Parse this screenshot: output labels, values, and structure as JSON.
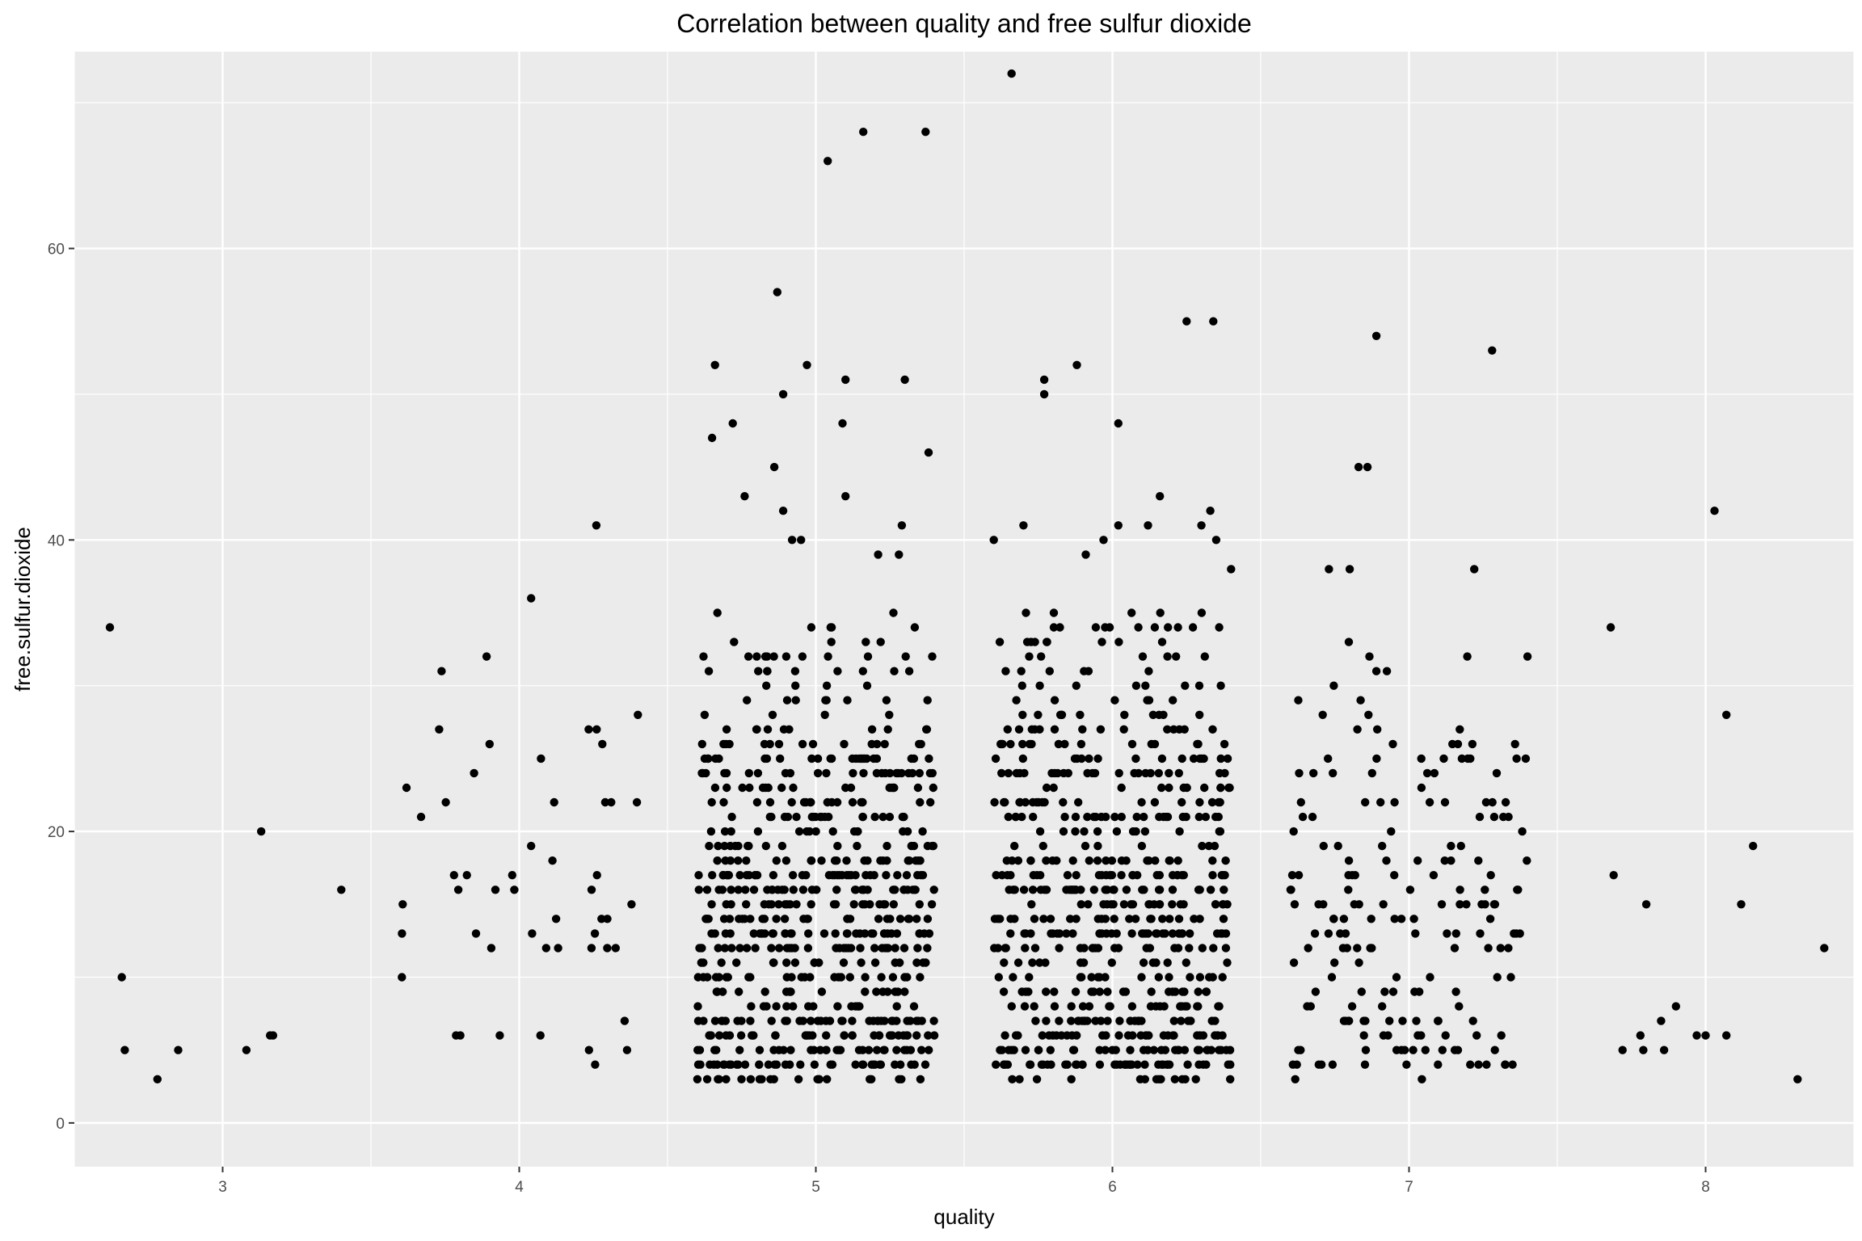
{
  "chart_data": {
    "type": "scatter",
    "title": "Correlation between quality and free sulfur dioxide",
    "xlabel": "quality",
    "ylabel": "free.sulfur.dioxide",
    "xlim": [
      2.5,
      8.5
    ],
    "ylim": [
      -3,
      73.5
    ],
    "x_ticks": [
      3,
      4,
      5,
      6,
      7,
      8
    ],
    "y_ticks": [
      0,
      20,
      40,
      60
    ],
    "x_tick_labels": [
      "3",
      "4",
      "5",
      "6",
      "7",
      "8"
    ],
    "y_tick_labels": [
      "0",
      "20",
      "40",
      "60"
    ],
    "grid": true,
    "jitter": true,
    "colors": {
      "panel": "#EBEBEB",
      "grid": "#FFFFFF",
      "point": "#000000"
    },
    "groups": [
      {
        "quality": 3,
        "count": 10,
        "outliers": [
          [
            2.62,
            34
          ],
          [
            2.66,
            10
          ],
          [
            2.67,
            5
          ],
          [
            2.78,
            3
          ],
          [
            2.85,
            5
          ],
          [
            3.08,
            5
          ],
          [
            3.13,
            20
          ],
          [
            3.16,
            6
          ],
          [
            3.17,
            6
          ],
          [
            3.4,
            16
          ]
        ]
      },
      {
        "quality": 4,
        "count": 53,
        "outliers": [
          [
            4.26,
            41
          ],
          [
            4.04,
            36
          ],
          [
            3.89,
            32
          ],
          [
            4.4,
            28
          ],
          [
            3.73,
            27
          ],
          [
            4.28,
            26
          ],
          [
            3.9,
            26
          ],
          [
            4.31,
            22
          ],
          [
            3.62,
            23
          ],
          [
            4.04,
            19
          ]
        ]
      },
      {
        "quality": 5,
        "count": 681,
        "outliers": [
          [
            5.66,
            72
          ],
          [
            5.16,
            68
          ],
          [
            5.37,
            68
          ],
          [
            5.04,
            66
          ],
          [
            4.87,
            57
          ],
          [
            4.97,
            52
          ],
          [
            4.66,
            52
          ],
          [
            5.1,
            51
          ],
          [
            5.3,
            51
          ],
          [
            4.89,
            50
          ],
          [
            5.09,
            48
          ],
          [
            4.72,
            48
          ],
          [
            4.65,
            47
          ],
          [
            5.38,
            46
          ],
          [
            4.86,
            45
          ],
          [
            5.1,
            43
          ],
          [
            4.76,
            43
          ],
          [
            4.89,
            42
          ],
          [
            4.92,
            40
          ],
          [
            5.29,
            41
          ],
          [
            4.95,
            40
          ],
          [
            5.21,
            39
          ],
          [
            5.28,
            39
          ]
        ]
      },
      {
        "quality": 6,
        "count": 638,
        "outliers": [
          [
            6.25,
            55
          ],
          [
            6.34,
            55
          ],
          [
            5.88,
            52
          ],
          [
            5.77,
            51
          ],
          [
            5.77,
            50
          ],
          [
            6.02,
            48
          ],
          [
            6.16,
            43
          ],
          [
            6.33,
            42
          ],
          [
            6.3,
            41
          ],
          [
            6.12,
            41
          ],
          [
            6.02,
            41
          ],
          [
            5.97,
            40
          ],
          [
            5.6,
            40
          ],
          [
            6.35,
            40
          ],
          [
            5.7,
            41
          ],
          [
            5.91,
            39
          ],
          [
            6.4,
            38
          ]
        ]
      },
      {
        "quality": 7,
        "count": 199,
        "outliers": [
          [
            6.89,
            54
          ],
          [
            7.28,
            53
          ],
          [
            6.83,
            45
          ],
          [
            6.86,
            45
          ],
          [
            7.22,
            38
          ],
          [
            6.8,
            38
          ],
          [
            6.73,
            38
          ]
        ]
      },
      {
        "quality": 8,
        "count": 18,
        "outliers": [
          [
            8.03,
            42
          ],
          [
            7.68,
            34
          ],
          [
            8.07,
            28
          ],
          [
            8.16,
            19
          ],
          [
            7.69,
            17
          ],
          [
            7.8,
            15
          ],
          [
            8.12,
            15
          ],
          [
            8.4,
            12
          ],
          [
            7.9,
            8
          ],
          [
            7.85,
            7
          ],
          [
            7.97,
            6
          ],
          [
            8.07,
            6
          ],
          [
            8.0,
            6
          ],
          [
            7.72,
            5
          ],
          [
            7.78,
            6
          ],
          [
            7.79,
            5
          ],
          [
            7.86,
            5
          ],
          [
            8.31,
            3
          ]
        ]
      }
    ]
  }
}
